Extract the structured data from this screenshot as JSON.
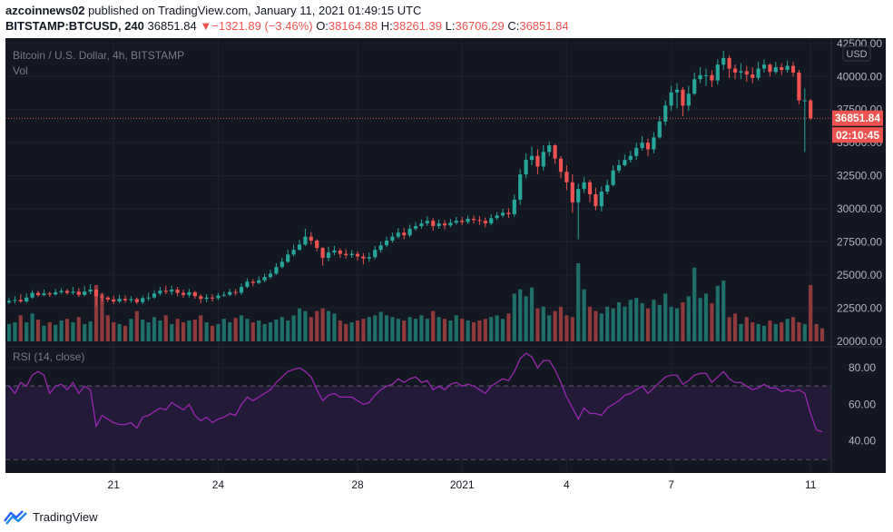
{
  "header": {
    "publisher": "azcoinnews02",
    "published_text": "published on TradingView.com, January 11, 2021 01:49:15 UTC",
    "symbol": "BITSTAMP:BTCUSD, 240",
    "last": "36851.84",
    "change": "−1321.89 (−3.46%)",
    "open_label": "O:",
    "open": "38164.88",
    "high_label": "H:",
    "high": "38261.39",
    "low_label": "L:",
    "low": "36706.29",
    "close_label": "C:",
    "close": "36851.84"
  },
  "main_pane": {
    "title": "Bitcoin / U.S. Dollar, 4h, BITSTAMP",
    "vol_label": "Vol",
    "currency": "USD",
    "price_tag": "36851.84",
    "countdown_tag": "02:10:45"
  },
  "rsi_pane": {
    "title": "RSI (14, close)"
  },
  "footer": {
    "brand": "TradingView"
  },
  "colors": {
    "background": "#131722",
    "up": "#26a69a",
    "down": "#ef5350",
    "rsi_line": "#9c27b0",
    "rsi_fill": "#231a37",
    "grid": "#1e222d",
    "axis_text": "#b2b5be"
  },
  "chart_data": [
    {
      "type": "candlestick",
      "title": "Bitcoin / U.S. Dollar, 4h, BITSTAMP",
      "y_ticks": [
        20000,
        22500,
        25000,
        27500,
        30000,
        32500,
        35000,
        37500,
        40000,
        42500
      ],
      "ylim": [
        19850,
        42900
      ],
      "x_tick_labels": [
        "21",
        "24",
        "28",
        "2021",
        "4",
        "7",
        "11"
      ],
      "x_tick_positions": [
        18,
        36,
        60,
        78,
        96,
        114,
        138
      ],
      "grid": true,
      "series": [
        {
          "name": "BTCUSD 4h",
          "close": [
            23050,
            23120,
            23000,
            23300,
            23650,
            23480,
            23610,
            23530,
            23700,
            23800,
            23650,
            23740,
            23500,
            23750,
            23900,
            23400,
            23300,
            23150,
            23000,
            23200,
            23090,
            23180,
            22950,
            23250,
            23300,
            23600,
            23820,
            23740,
            23900,
            23650,
            23500,
            23700,
            23400,
            23200,
            23300,
            23250,
            23450,
            23500,
            23720,
            23660,
            24100,
            24500,
            24400,
            24600,
            24850,
            25100,
            25600,
            26000,
            26550,
            26900,
            27300,
            27900,
            27600,
            27050,
            26300,
            26700,
            26850,
            26600,
            26500,
            26600,
            26400,
            26250,
            26350,
            26900,
            27250,
            27600,
            27900,
            28200,
            28000,
            28500,
            28700,
            28900,
            29100,
            28700,
            28900,
            28750,
            28950,
            29100,
            29000,
            29250,
            29150,
            29100,
            28900,
            29300,
            29500,
            29700,
            29600,
            30700,
            32600,
            33700,
            34000,
            33200,
            34300,
            34800,
            33800,
            32800,
            32000,
            30500,
            31500,
            32000,
            31100,
            30200,
            31300,
            31800,
            32900,
            33300,
            33700,
            34000,
            34600,
            35000,
            34500,
            35400,
            36600,
            37800,
            38800,
            39000,
            37800,
            38700,
            39800,
            40100,
            40100,
            39700,
            40900,
            41400,
            40600,
            40300,
            40400,
            40150,
            39900,
            40600,
            40900,
            40350,
            40700,
            40500,
            40800,
            40300,
            38200,
            38200,
            36850
          ],
          "high": [
            23300,
            23400,
            23550,
            23600,
            23850,
            23800,
            23900,
            23750,
            23950,
            24000,
            23950,
            24100,
            24000,
            24150,
            24300,
            23700,
            23650,
            23400,
            23450,
            23500,
            23450,
            23400,
            23300,
            23450,
            23650,
            23850,
            24100,
            24200,
            24200,
            24100,
            23900,
            23950,
            23800,
            23550,
            23550,
            23550,
            23650,
            23750,
            23950,
            23950,
            24350,
            24750,
            24700,
            24900,
            25100,
            25400,
            25900,
            26300,
            26900,
            27300,
            27650,
            28500,
            28250,
            27700,
            27100,
            27150,
            27200,
            27000,
            26950,
            26900,
            26800,
            26650,
            26700,
            27200,
            27550,
            27900,
            28200,
            28550,
            28550,
            28800,
            29000,
            29200,
            29450,
            29300,
            29200,
            29150,
            29250,
            29400,
            29400,
            29500,
            29500,
            29450,
            29350,
            29600,
            29750,
            30000,
            30050,
            31100,
            33000,
            34200,
            34700,
            34500,
            34800,
            35100,
            34900,
            34000,
            33300,
            32600,
            31900,
            32400,
            32200,
            31600,
            31700,
            32200,
            33300,
            33700,
            34100,
            34400,
            35000,
            35500,
            35300,
            35800,
            37000,
            38200,
            39300,
            39500,
            39200,
            39300,
            40300,
            40700,
            40600,
            40500,
            41300,
            41950,
            41600,
            40900,
            41000,
            40800,
            40700,
            41100,
            41300,
            41000,
            41100,
            41000,
            41200,
            41100,
            40500,
            39100,
            38300
          ],
          "low": [
            22800,
            22850,
            22900,
            22900,
            23200,
            23350,
            23400,
            23350,
            23450,
            23550,
            23500,
            23500,
            23350,
            23400,
            23550,
            22650,
            23000,
            22950,
            22800,
            22900,
            22900,
            22900,
            22800,
            22800,
            23050,
            23200,
            23450,
            23550,
            23500,
            23400,
            23300,
            23300,
            23200,
            22850,
            22950,
            23000,
            23100,
            23350,
            23400,
            23450,
            23500,
            24000,
            24150,
            24300,
            24450,
            24700,
            25000,
            25500,
            25900,
            26400,
            26850,
            27200,
            27300,
            26800,
            25700,
            26050,
            26500,
            26300,
            26250,
            26300,
            26100,
            25800,
            26000,
            26200,
            26700,
            27100,
            27450,
            27750,
            27700,
            27850,
            28350,
            28500,
            28700,
            28350,
            28500,
            28450,
            28600,
            28800,
            28750,
            28850,
            28900,
            28800,
            28600,
            28750,
            29150,
            29350,
            29300,
            29400,
            30300,
            32300,
            33300,
            32600,
            32900,
            34000,
            33400,
            32300,
            31400,
            29700,
            27700,
            31200,
            30500,
            29900,
            29800,
            31100,
            31700,
            32700,
            33200,
            33500,
            33700,
            34400,
            34000,
            34200,
            35300,
            36300,
            37400,
            37600,
            37000,
            37400,
            38600,
            39500,
            39300,
            39200,
            39400,
            40500,
            39900,
            39800,
            39800,
            39600,
            39500,
            39700,
            40300,
            40000,
            40200,
            40100,
            40300,
            40000,
            37900,
            34300,
            36700
          ]
        }
      ]
    },
    {
      "type": "bar",
      "title": "Vol",
      "ylabel": "",
      "note": "volume bars in relative units, colored by candle direction",
      "values": [
        20,
        22,
        30,
        22,
        32,
        25,
        18,
        22,
        19,
        24,
        26,
        22,
        28,
        20,
        23,
        65,
        55,
        30,
        22,
        20,
        18,
        26,
        35,
        25,
        22,
        28,
        24,
        30,
        20,
        26,
        22,
        24,
        25,
        30,
        22,
        18,
        20,
        26,
        22,
        27,
        30,
        26,
        22,
        24,
        20,
        22,
        25,
        28,
        24,
        30,
        38,
        35,
        28,
        35,
        38,
        35,
        32,
        24,
        20,
        22,
        24,
        26,
        28,
        30,
        34,
        30,
        28,
        26,
        24,
        28,
        26,
        30,
        26,
        35,
        28,
        26,
        24,
        30,
        26,
        24,
        22,
        24,
        26,
        28,
        30,
        26,
        32,
        55,
        60,
        52,
        62,
        38,
        40,
        30,
        35,
        40,
        30,
        28,
        90,
        60,
        40,
        35,
        32,
        40,
        38,
        45,
        40,
        48,
        50,
        44,
        38,
        48,
        42,
        55,
        40,
        38,
        45,
        52,
        85,
        50,
        55,
        44,
        64,
        70,
        28,
        32,
        20,
        28,
        22,
        20,
        18,
        24,
        20,
        22,
        26,
        28,
        22,
        20,
        65,
        20,
        15
      ]
    },
    {
      "type": "line",
      "title": "RSI (14, close)",
      "y_ticks": [
        40,
        60,
        80
      ],
      "ylim": [
        22.5,
        91.5
      ],
      "bands": [
        30,
        70
      ],
      "series": [
        {
          "name": "RSI",
          "values": [
            70,
            66,
            72,
            70,
            76,
            78,
            76,
            66,
            70,
            71,
            68,
            72,
            66,
            70,
            68,
            48,
            54,
            52,
            50,
            49,
            49,
            50,
            47,
            53,
            54,
            56,
            58,
            57,
            61,
            59,
            57,
            60,
            54,
            51,
            53,
            50,
            52,
            53,
            55,
            54,
            60,
            64,
            62,
            64,
            66,
            68,
            72,
            75,
            78,
            79,
            80,
            78,
            75,
            68,
            62,
            65,
            66,
            64,
            64,
            64,
            62,
            60,
            61,
            65,
            68,
            70,
            71,
            74,
            72,
            74,
            75,
            72,
            73,
            68,
            70,
            68,
            71,
            72,
            70,
            71,
            70,
            68,
            66,
            70,
            72,
            74,
            73,
            78,
            85,
            88,
            86,
            80,
            84,
            84,
            79,
            72,
            64,
            58,
            52,
            58,
            55,
            55,
            54,
            58,
            60,
            62,
            65,
            66,
            68,
            70,
            66,
            69,
            72,
            75,
            76,
            76,
            71,
            73,
            76,
            77,
            77,
            72,
            75,
            78,
            74,
            72,
            72,
            70,
            68,
            69,
            71,
            69,
            69,
            67,
            68,
            67,
            68,
            66,
            55,
            46,
            45
          ]
        }
      ]
    }
  ]
}
